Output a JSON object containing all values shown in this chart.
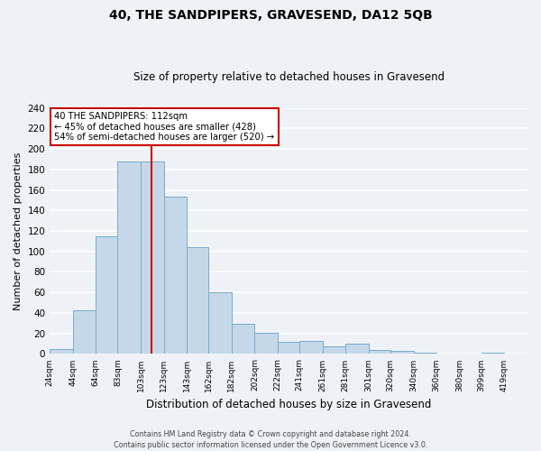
{
  "title": "40, THE SANDPIPERS, GRAVESEND, DA12 5QB",
  "subtitle": "Size of property relative to detached houses in Gravesend",
  "xlabel": "Distribution of detached houses by size in Gravesend",
  "ylabel": "Number of detached properties",
  "bin_labels": [
    "24sqm",
    "44sqm",
    "64sqm",
    "83sqm",
    "103sqm",
    "123sqm",
    "143sqm",
    "162sqm",
    "182sqm",
    "202sqm",
    "222sqm",
    "241sqm",
    "261sqm",
    "281sqm",
    "301sqm",
    "320sqm",
    "340sqm",
    "360sqm",
    "380sqm",
    "399sqm",
    "419sqm"
  ],
  "bin_edges": [
    24,
    44,
    64,
    83,
    103,
    123,
    143,
    162,
    182,
    202,
    222,
    241,
    261,
    281,
    301,
    320,
    340,
    360,
    380,
    399,
    419,
    439
  ],
  "bar_heights": [
    5,
    43,
    115,
    188,
    188,
    153,
    104,
    60,
    29,
    21,
    12,
    13,
    7,
    10,
    4,
    3,
    1,
    0,
    0,
    1,
    0
  ],
  "bar_color": "#c5d8ea",
  "bar_edge_color": "#7aaac8",
  "property_value": 112,
  "vline_color": "#cc0000",
  "annotation_title": "40 THE SANDPIPERS: 112sqm",
  "annotation_line1": "← 45% of detached houses are smaller (428)",
  "annotation_line2": "54% of semi-detached houses are larger (520) →",
  "annotation_box_color": "#ffffff",
  "annotation_box_edge": "#cc0000",
  "ylim": [
    0,
    240
  ],
  "yticks": [
    0,
    20,
    40,
    60,
    80,
    100,
    120,
    140,
    160,
    180,
    200,
    220,
    240
  ],
  "footer_line1": "Contains HM Land Registry data © Crown copyright and database right 2024.",
  "footer_line2": "Contains public sector information licensed under the Open Government Licence v3.0.",
  "background_color": "#eef2f7",
  "grid_color": "#ffffff"
}
